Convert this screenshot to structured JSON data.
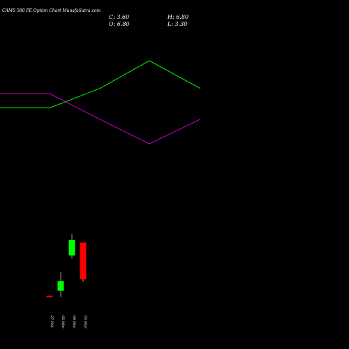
{
  "header": {
    "title": "CAMS 580  PE Option  Chart MunafaSutra.com",
    "close": "C: 3.60",
    "high": "H: 6.80",
    "open": "O: 6.80",
    "low": "L: 3.30"
  },
  "chart_data": {
    "type": "candlestick",
    "categories": [
      "27 Feb",
      "02 Mar",
      "04 Mar",
      "05 Mar"
    ],
    "candles": [
      {
        "date": "27 Feb",
        "open": 6.0,
        "high": 6.0,
        "low": 5.4,
        "close": 5.4,
        "color": "#ff0000"
      },
      {
        "date": "02 Mar",
        "open": 8.0,
        "high": 15.5,
        "low": 5.5,
        "close": 11.9,
        "color": "#00ff00"
      },
      {
        "date": "04 Mar",
        "open": 22.3,
        "high": 31.0,
        "low": 21.0,
        "close": 28.5,
        "color": "#00ff00"
      },
      {
        "date": "05 Mar",
        "open": 27.5,
        "high": 27.5,
        "low": 11.6,
        "close": 12.6,
        "color": "#ff0000"
      }
    ],
    "price_range": [
      0,
      55
    ],
    "lines": [
      {
        "color": "#00ff00",
        "points": [
          {
            "x": "27 Feb",
            "y": 0.54
          },
          {
            "x": "02 Mar",
            "y": 0.54
          },
          {
            "x": "04 Mar",
            "y": 0.73
          },
          {
            "x": "05 Mar",
            "y": 1.0
          },
          {
            "x": "end",
            "y": 0.73
          }
        ]
      },
      {
        "color": "#cc00cc",
        "points": [
          {
            "x": "27 Feb",
            "y": 0.68
          },
          {
            "x": "02 Mar",
            "y": 0.68
          },
          {
            "x": "04 Mar",
            "y": 0.43
          },
          {
            "x": "05 Mar",
            "y": 0.19
          },
          {
            "x": "end",
            "y": 0.43
          }
        ]
      }
    ],
    "grid": false,
    "legend": "none"
  }
}
